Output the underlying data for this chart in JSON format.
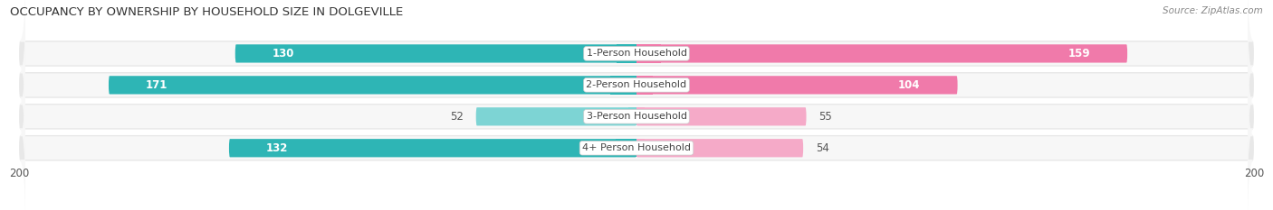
{
  "title": "OCCUPANCY BY OWNERSHIP BY HOUSEHOLD SIZE IN DOLGEVILLE",
  "source": "Source: ZipAtlas.com",
  "categories": [
    "1-Person Household",
    "2-Person Household",
    "3-Person Household",
    "4+ Person Household"
  ],
  "owner_values": [
    130,
    171,
    52,
    132
  ],
  "renter_values": [
    159,
    104,
    55,
    54
  ],
  "max_val": 200,
  "owner_color_dark": "#2eb5b5",
  "owner_color_light": "#7dd4d4",
  "renter_color_dark": "#f07aaa",
  "renter_color_light": "#f5aac8",
  "row_bg_color": "#e8e8e8",
  "label_bg_color": "#ffffff",
  "title_fontsize": 9.5,
  "source_fontsize": 7.5,
  "bar_label_fontsize": 8.5,
  "category_fontsize": 8,
  "axis_label_fontsize": 8.5,
  "legend_fontsize": 8,
  "fig_width": 14.06,
  "fig_height": 2.33
}
